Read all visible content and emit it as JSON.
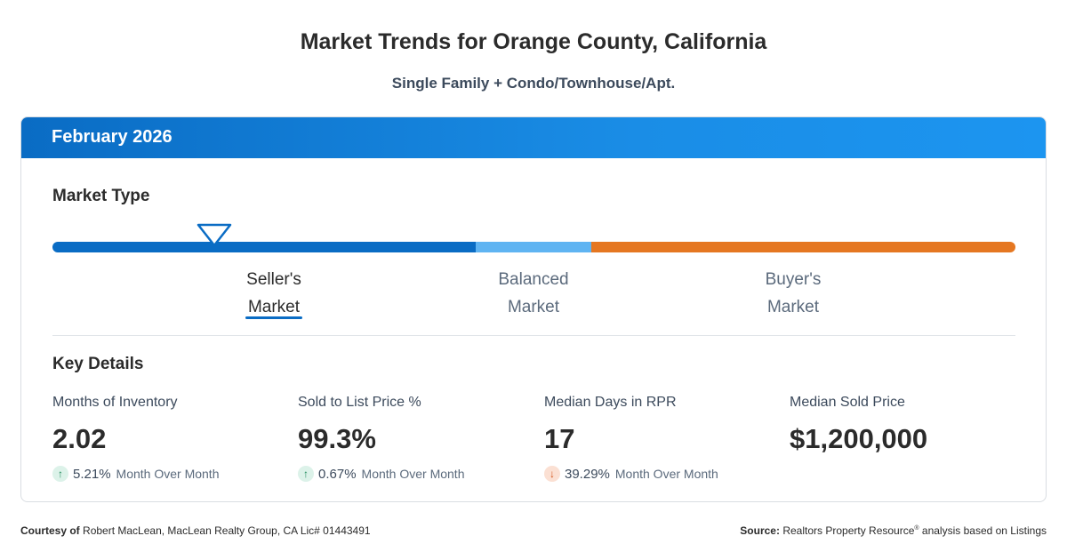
{
  "header": {
    "title": "Market Trends for Orange County, California",
    "subtitle": "Single Family + Condo/Townhouse/Apt."
  },
  "card": {
    "period": "February 2026",
    "market_type": {
      "heading": "Market Type",
      "selected": "Seller's Market",
      "labels": [
        {
          "line1": "Seller's",
          "line2": "Market"
        },
        {
          "line1": "Balanced",
          "line2": "Market"
        },
        {
          "line1": "Buyer's",
          "line2": "Market"
        }
      ],
      "colors": {
        "seller": "#0a6cc4",
        "balanced": "#5fb4f2",
        "buyer": "#e57721"
      }
    },
    "key_details": {
      "heading": "Key Details",
      "metrics": [
        {
          "label": "Months of Inventory",
          "value": "2.02",
          "direction": "up",
          "arrow": "↑",
          "change": "5.21%",
          "period": "Month Over Month"
        },
        {
          "label": "Sold to List Price %",
          "value": "99.3%",
          "direction": "up",
          "arrow": "↑",
          "change": "0.67%",
          "period": "Month Over Month"
        },
        {
          "label": "Median Days in RPR",
          "value": "17",
          "direction": "down",
          "arrow": "↓",
          "change": "39.29%",
          "period": "Month Over Month"
        },
        {
          "label": "Median Sold Price",
          "value": "$1,200,000"
        }
      ]
    }
  },
  "footer": {
    "courtesy_label": "Courtesy of",
    "courtesy_text": "Robert MacLean, MacLean Realty Group, CA Lic# 01443491",
    "source_label": "Source:",
    "source_text_1": "Realtors Property Resource",
    "source_mark": "®",
    "source_text_2": "analysis based on Listings"
  }
}
